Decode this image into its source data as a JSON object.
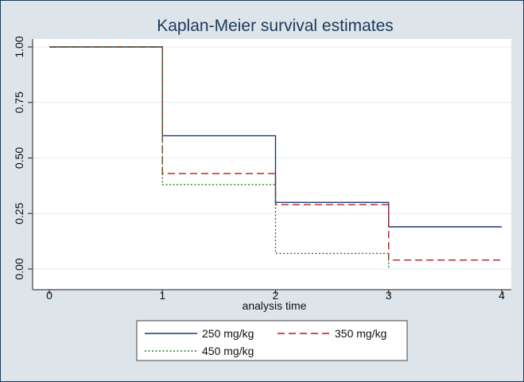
{
  "chart_data": {
    "type": "line",
    "title": "Kaplan-Meier survival estimates",
    "xlabel": "analysis time",
    "ylabel": "",
    "xlim": [
      0,
      4
    ],
    "ylim": [
      0,
      1
    ],
    "x_ticks": [
      "0",
      "1",
      "2",
      "3",
      "4"
    ],
    "y_ticks": [
      "0.00",
      "0.25",
      "0.50",
      "0.75",
      "1.00"
    ],
    "grid": true,
    "legend_position": "bottom",
    "series": [
      {
        "name": "250 mg/kg",
        "color": "#1a3c78",
        "style": "solid",
        "x": [
          0,
          1,
          2,
          3,
          4
        ],
        "y": [
          1.0,
          0.6,
          0.3,
          0.19,
          0.19
        ]
      },
      {
        "name": "350 mg/kg",
        "color": "#b01c1c",
        "style": "dashed",
        "x": [
          0,
          1,
          2,
          3,
          4
        ],
        "y": [
          1.0,
          0.43,
          0.29,
          0.04,
          0.04
        ]
      },
      {
        "name": "450 mg/kg",
        "color": "#2a7a2a",
        "style": "dotted",
        "x": [
          0,
          1,
          2,
          3
        ],
        "y": [
          1.0,
          0.38,
          0.07,
          0.0
        ]
      }
    ]
  }
}
